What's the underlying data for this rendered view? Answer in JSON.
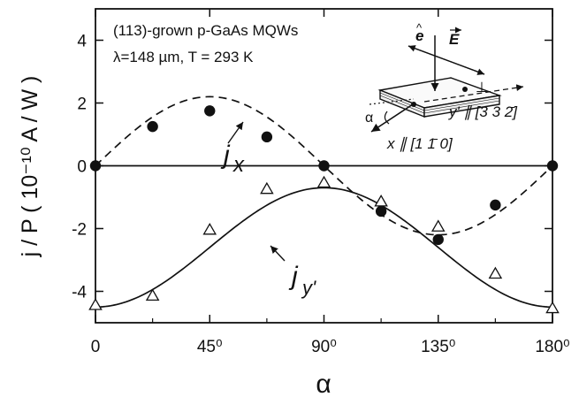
{
  "chart_data": {
    "type": "scatter",
    "annotation": {
      "line1": "(113)-grown p-GaAs MQWs",
      "line2": "λ=148 µm,  T = 293 K"
    },
    "x_axis": {
      "label": "α",
      "range": [
        0,
        180
      ],
      "ticks": [
        {
          "value": 0,
          "label": "0"
        },
        {
          "value": 45,
          "label": "45⁰"
        },
        {
          "value": 90,
          "label": "90⁰"
        },
        {
          "value": 135,
          "label": "135⁰"
        },
        {
          "value": 180,
          "label": "180⁰"
        }
      ]
    },
    "y_axis": {
      "label": "j / P   ( 10⁻¹⁰ A / W )",
      "range": [
        -5,
        5
      ],
      "ticks": [
        {
          "value": 4,
          "label": "4"
        },
        {
          "value": 2,
          "label": "2"
        },
        {
          "value": 0,
          "label": "0"
        },
        {
          "value": -2,
          "label": "-2"
        },
        {
          "value": -4,
          "label": "-4"
        }
      ]
    },
    "series": [
      {
        "name": "j_x",
        "marker": "filled-circle",
        "points": [
          {
            "x": 0,
            "y": 0
          },
          {
            "x": 22.5,
            "y": 1.25
          },
          {
            "x": 45,
            "y": 1.75
          },
          {
            "x": 67.5,
            "y": 0.92
          },
          {
            "x": 90,
            "y": 0
          },
          {
            "x": 112.5,
            "y": -1.45
          },
          {
            "x": 135,
            "y": -2.35
          },
          {
            "x": 157.5,
            "y": -1.25
          },
          {
            "x": 180,
            "y": 0
          }
        ],
        "fit_style": "dashed",
        "fit_model": {
          "amplitude": 2.2,
          "frequency_factor": 2
        }
      },
      {
        "name": "j_y'",
        "marker": "open-triangle",
        "points": [
          {
            "x": 0,
            "y": -4.45
          },
          {
            "x": 22.5,
            "y": -4.15
          },
          {
            "x": 45,
            "y": -2.05
          },
          {
            "x": 67.5,
            "y": -0.75
          },
          {
            "x": 90,
            "y": -0.55
          },
          {
            "x": 112.5,
            "y": -1.15
          },
          {
            "x": 135,
            "y": -1.95
          },
          {
            "x": 157.5,
            "y": -3.45
          },
          {
            "x": 180,
            "y": -4.55
          }
        ],
        "fit_style": "solid",
        "fit_model": {
          "offset": -2.6,
          "amplitude": 1.9,
          "frequency_factor": 2
        }
      }
    ],
    "curve_labels": {
      "jx": {
        "main": "j",
        "sub": "x"
      },
      "jy": {
        "main": "j",
        "sub": "y'"
      }
    },
    "inset": {
      "e_label": "e",
      "E_label": "E",
      "perp_label": "⊥",
      "alpha_label": "α",
      "x_axis_label": "x ∥ [1 1̄ 0]",
      "y_axis_label": "y' ∥ [3 3 2̄]"
    }
  }
}
